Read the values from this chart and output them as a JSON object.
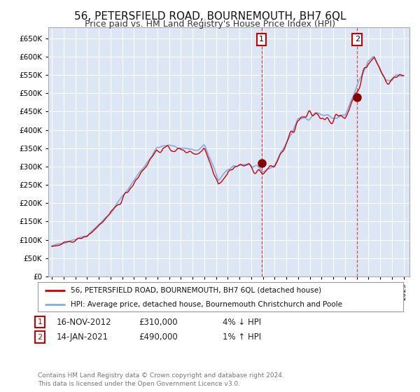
{
  "title": "56, PETERSFIELD ROAD, BOURNEMOUTH, BH7 6QL",
  "subtitle": "Price paid vs. HM Land Registry's House Price Index (HPI)",
  "title_fontsize": 11,
  "subtitle_fontsize": 9,
  "bg_color": "#dce6f5",
  "plot_bg_color": "#dce6f5",
  "grid_color": "#ffffff",
  "line1_color": "#cc0000",
  "line2_color": "#88aadd",
  "marker_color": "#880000",
  "annotation_box_color": "#cc0000",
  "vline_color": "#cc3333",
  "footnote": "Contains HM Land Registry data © Crown copyright and database right 2024.\nThis data is licensed under the Open Government Licence v3.0.",
  "legend1": "56, PETERSFIELD ROAD, BOURNEMOUTH, BH7 6QL (detached house)",
  "legend2": "HPI: Average price, detached house, Bournemouth Christchurch and Poole",
  "ann1_label": "1",
  "ann1_date": "16-NOV-2012",
  "ann1_price": "£310,000",
  "ann1_change": "4% ↓ HPI",
  "ann2_label": "2",
  "ann2_date": "14-JAN-2021",
  "ann2_price": "£490,000",
  "ann2_change": "1% ↑ HPI",
  "ylim_max": 680000,
  "ytick_step": 50000,
  "sale1_year": 2012.88,
  "sale1_value": 310000,
  "sale2_year": 2021.04,
  "sale2_value": 490000
}
